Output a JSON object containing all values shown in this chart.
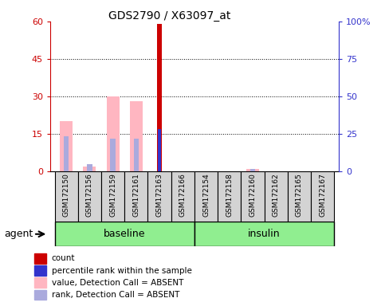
{
  "title": "GDS2790 / X63097_at",
  "samples": [
    "GSM172150",
    "GSM172156",
    "GSM172159",
    "GSM172161",
    "GSM172163",
    "GSM172166",
    "GSM172154",
    "GSM172158",
    "GSM172160",
    "GSM172162",
    "GSM172165",
    "GSM172167"
  ],
  "group_boundary": 6,
  "groups": [
    {
      "name": "baseline",
      "color": "#90ee90"
    },
    {
      "name": "insulin",
      "color": "#90ee90"
    }
  ],
  "ylim_left": [
    0,
    60
  ],
  "ylim_right": [
    0,
    100
  ],
  "yticks_left": [
    0,
    15,
    30,
    45,
    60
  ],
  "yticks_right": [
    0,
    25,
    50,
    75,
    100
  ],
  "ytick_labels_left": [
    "0",
    "15",
    "30",
    "45",
    "60"
  ],
  "ytick_labels_right": [
    "0",
    "25",
    "50",
    "75",
    "100%"
  ],
  "count_values": [
    0,
    0,
    0,
    0,
    59,
    0,
    0,
    0,
    0,
    0,
    0,
    0
  ],
  "percentile_values": [
    0,
    0,
    0,
    0,
    28,
    0,
    0,
    0,
    0,
    0,
    0,
    0
  ],
  "pink_bar_values": [
    20,
    2,
    30,
    28,
    0,
    0,
    0,
    0,
    1,
    0,
    0,
    0
  ],
  "blue_bar_values": [
    14,
    3,
    13,
    13,
    0,
    0,
    0,
    0,
    1,
    0,
    0,
    0
  ],
  "count_color": "#cc0000",
  "percentile_color": "#3333cc",
  "pink_color": "#ffb6c1",
  "blue_color": "#aaaadd",
  "left_axis_color": "#cc0000",
  "right_axis_color": "#3333cc",
  "agent_label": "agent",
  "legend_items": [
    {
      "color": "#cc0000",
      "label": "count"
    },
    {
      "color": "#3333cc",
      "label": "percentile rank within the sample"
    },
    {
      "color": "#ffb6c1",
      "label": "value, Detection Call = ABSENT"
    },
    {
      "color": "#aaaadd",
      "label": "rank, Detection Call = ABSENT"
    }
  ],
  "background_color": "#ffffff",
  "label_bg_color": "#d3d3d3"
}
